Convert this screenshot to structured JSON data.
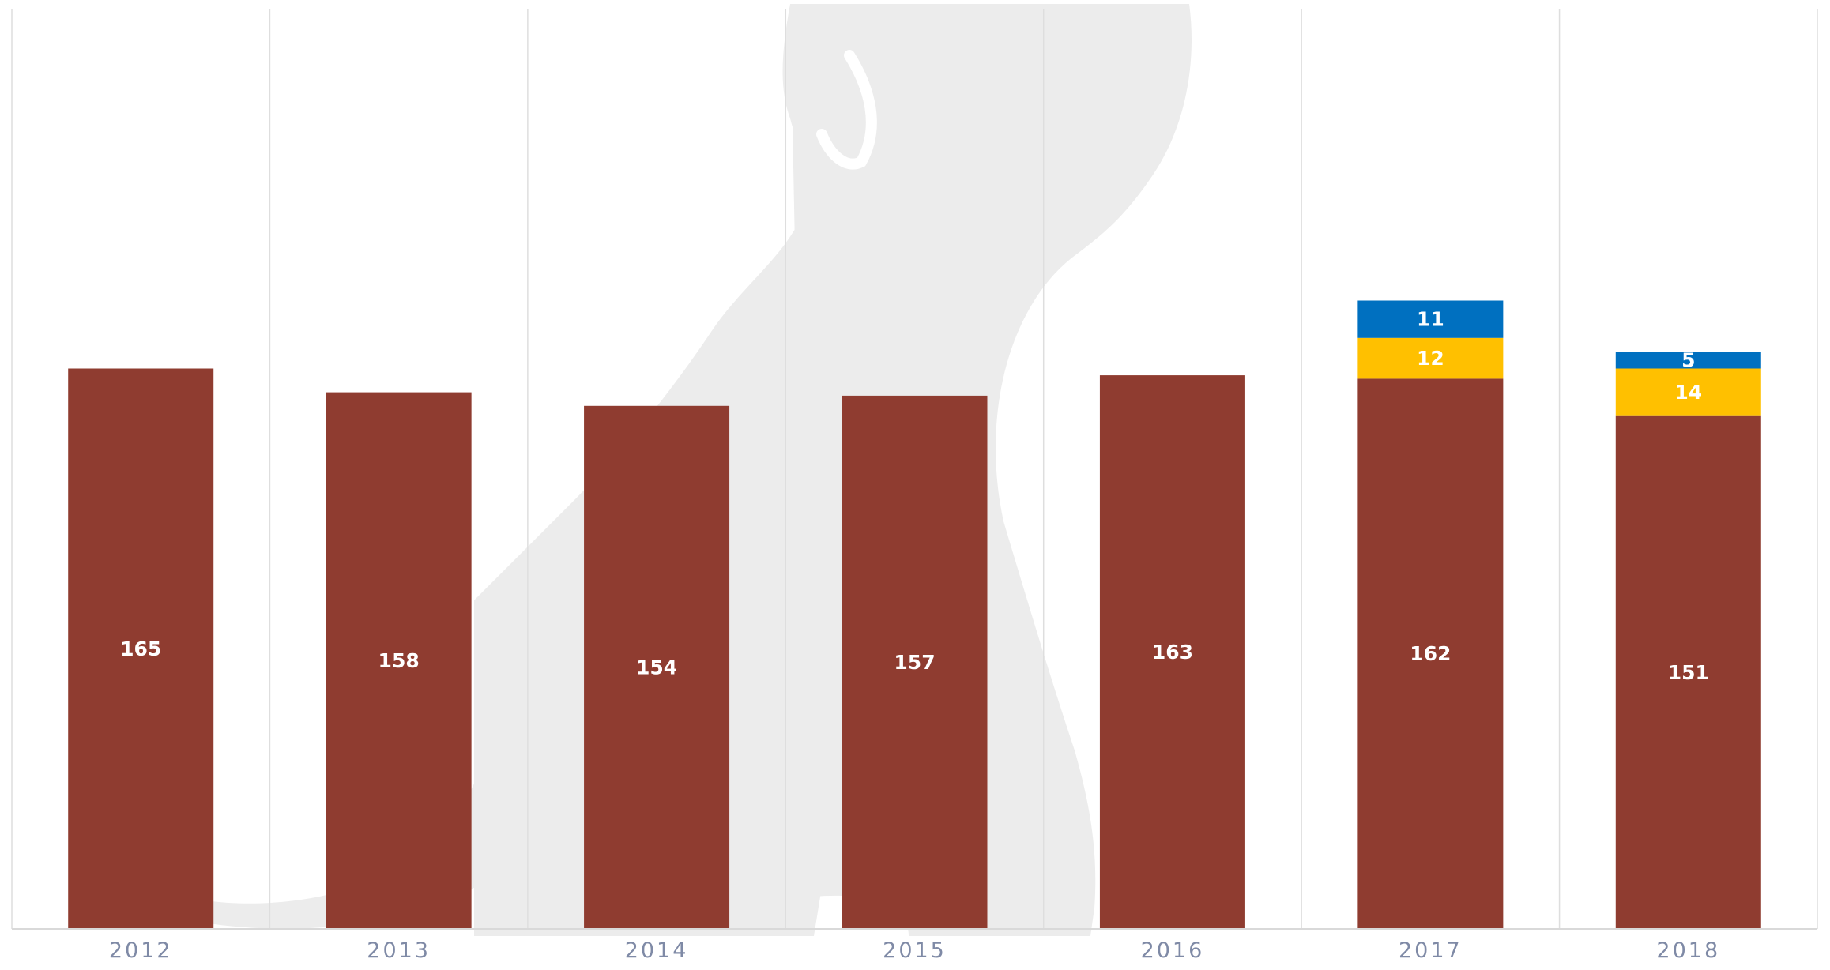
{
  "chart_data": {
    "type": "bar",
    "stacked": true,
    "categories": [
      "2012",
      "2013",
      "2014",
      "2015",
      "2016",
      "2017",
      "2018"
    ],
    "series": [
      {
        "values": [
          165,
          158,
          154,
          157,
          163,
          162,
          151
        ],
        "color": "#8f3c30"
      },
      {
        "values": [
          null,
          null,
          null,
          null,
          null,
          12,
          14
        ],
        "color": "#ffc000"
      },
      {
        "values": [
          null,
          null,
          null,
          null,
          null,
          11,
          5
        ],
        "color": "#0070c0"
      }
    ],
    "title": "",
    "xlabel": "",
    "ylabel": "",
    "ylim": [
      0,
      200
    ],
    "grid": {
      "vertical": true,
      "horizontal": false
    },
    "legend": "none",
    "data_labels": true,
    "watermark": "dog-silhouette"
  }
}
